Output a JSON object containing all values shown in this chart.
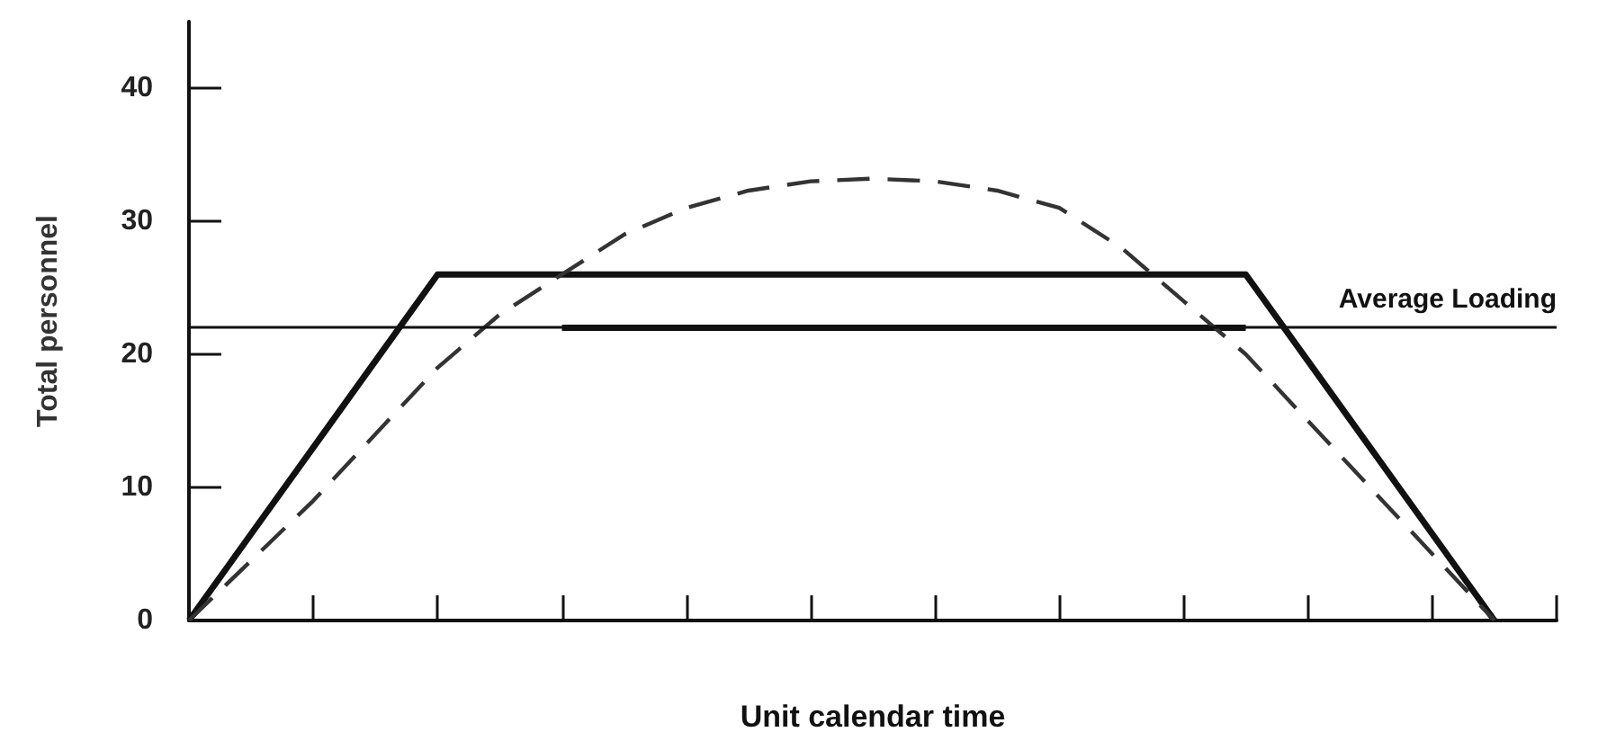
{
  "chart_data": {
    "type": "line",
    "xlabel": "Unit calendar time",
    "ylabel": "Total personnel",
    "categories": [
      null,
      null,
      null,
      null,
      null,
      null,
      null,
      null,
      null,
      null,
      null,
      null,
      null,
      null,
      null,
      null,
      null,
      null,
      null,
      null,
      null,
      null,
      null
    ],
    "series": [
      {
        "color": "#111111",
        "line_style": "solid",
        "values": [
          0,
          6.5,
          13,
          19.5,
          26,
          26,
          26,
          26,
          26,
          26,
          26,
          26,
          26,
          26,
          26,
          26,
          26,
          26,
          19.5,
          13,
          6.5,
          0,
          null
        ]
      },
      {
        "color": "#111111",
        "line_style": "solid",
        "values": [
          null,
          null,
          null,
          null,
          null,
          null,
          22,
          22,
          22,
          22,
          22,
          22,
          22,
          22,
          22,
          22,
          22,
          22,
          null,
          null,
          null,
          null,
          null
        ]
      },
      {
        "color": "#333333",
        "line_style": "dashed",
        "values": [
          0,
          4.5,
          9,
          14,
          19,
          23,
          26,
          29,
          31,
          32.3,
          33,
          33.2,
          33,
          32.3,
          31,
          28,
          24,
          20,
          15,
          10,
          5,
          0,
          null
        ]
      }
    ],
    "ref_lines": [
      {
        "axis": "y",
        "value": 22,
        "label": "Average Loading",
        "color": "#111111"
      }
    ],
    "ylim": [
      0,
      45
    ],
    "yticks": [
      0,
      10,
      20,
      30,
      40
    ],
    "grid": false,
    "marker": "none",
    "tick_labels": "y"
  }
}
